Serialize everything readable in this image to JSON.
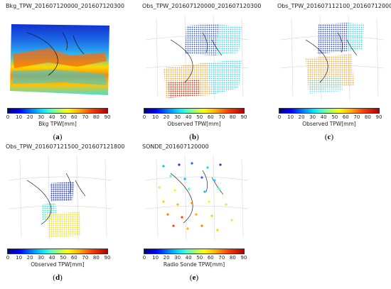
{
  "panels": [
    {
      "id": "a",
      "title": "Bkg_TPW_201607120000_201607120300",
      "colorbar_label": "Bkg TPW[mm]",
      "label_open": "(",
      "label_letter": "a",
      "label_close": ")"
    },
    {
      "id": "b",
      "title": "Obs_TPW_201607120000_201607120300",
      "colorbar_label": "Observed TPW[mm]",
      "label_open": "(",
      "label_letter": "b",
      "label_close": ")"
    },
    {
      "id": "c",
      "title": "Obs_TPW_201607112100_201607120000",
      "colorbar_label": "Observed TPW[mm]",
      "label_open": "(",
      "label_letter": "c",
      "label_close": ")"
    },
    {
      "id": "d",
      "title": "Obs_TPW_201607121500_201607121800",
      "colorbar_label": "Observed TPW[mm]",
      "label_open": "(",
      "label_letter": "d",
      "label_close": ")"
    },
    {
      "id": "e",
      "title": "SONDE_201607120000",
      "colorbar_label": "Radio Sonde TPW[mm]",
      "label_open": "(",
      "label_letter": "e",
      "label_close": ")"
    }
  ],
  "colorbar": {
    "ticks": [
      "0",
      "10",
      "20",
      "30",
      "40",
      "50",
      "60",
      "70",
      "80",
      "90"
    ],
    "range": [
      0,
      90
    ],
    "colors": [
      "#00008b",
      "#0000ff",
      "#0080ff",
      "#00e0ff",
      "#40ffd0",
      "#b0ff60",
      "#ffff00",
      "#ffb000",
      "#ff4000",
      "#b00000"
    ]
  }
}
